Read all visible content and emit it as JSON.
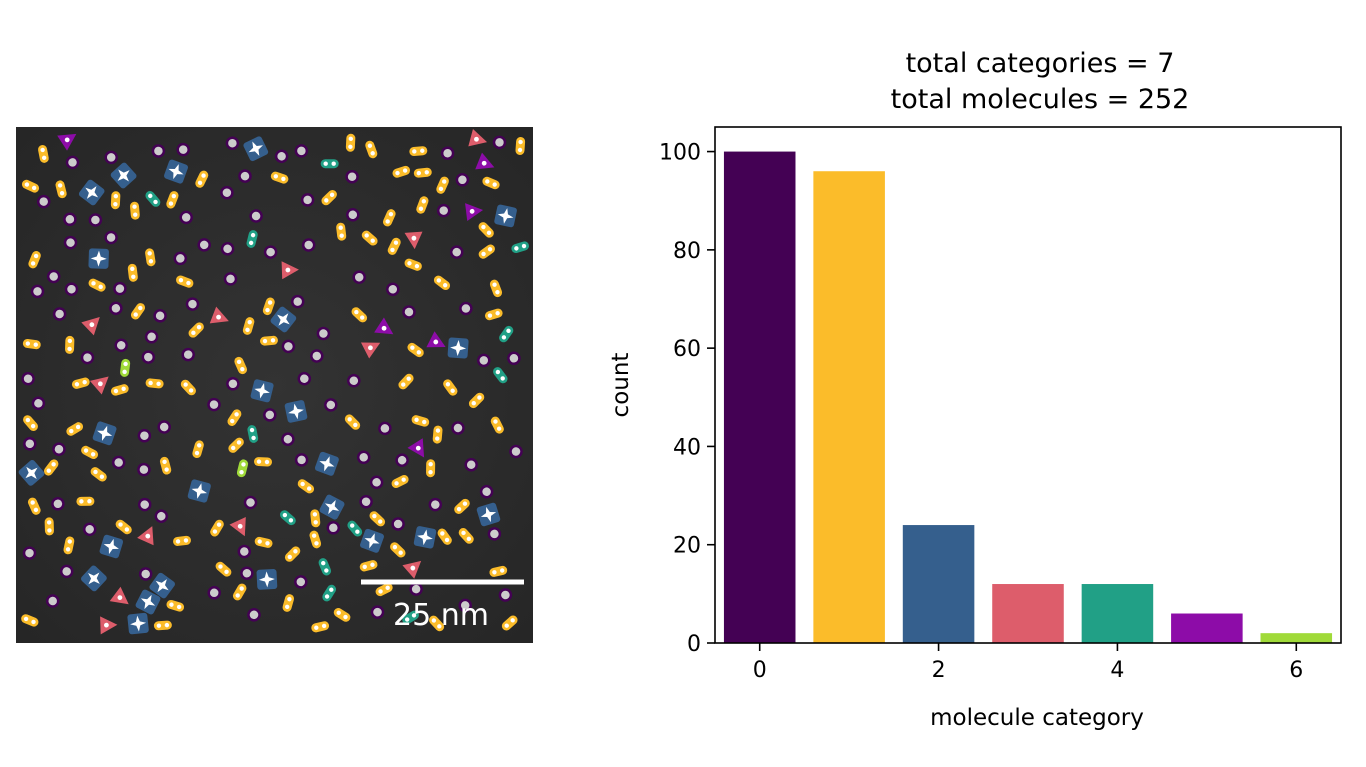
{
  "micrograph": {
    "scale_bar_label": "25 nm"
  },
  "chart_data": {
    "type": "bar",
    "title_lines": [
      "total categories = 7",
      "total molecules = 252"
    ],
    "xlabel": "molecule category",
    "ylabel": "count",
    "categories": [
      0,
      1,
      2,
      3,
      4,
      5,
      6
    ],
    "values": [
      100,
      96,
      24,
      12,
      12,
      6,
      2
    ],
    "colors": [
      "#440154",
      "#fbbc2a",
      "#355f8d",
      "#dd5d6b",
      "#21a086",
      "#8d0ca8",
      "#a0da39"
    ],
    "xlim": [
      -0.5,
      6.5
    ],
    "ylim": [
      0,
      105
    ],
    "xticks": [
      0,
      2,
      4,
      6
    ],
    "yticks": [
      0,
      20,
      40,
      60,
      80,
      100
    ],
    "grid": false,
    "legend": "none"
  }
}
